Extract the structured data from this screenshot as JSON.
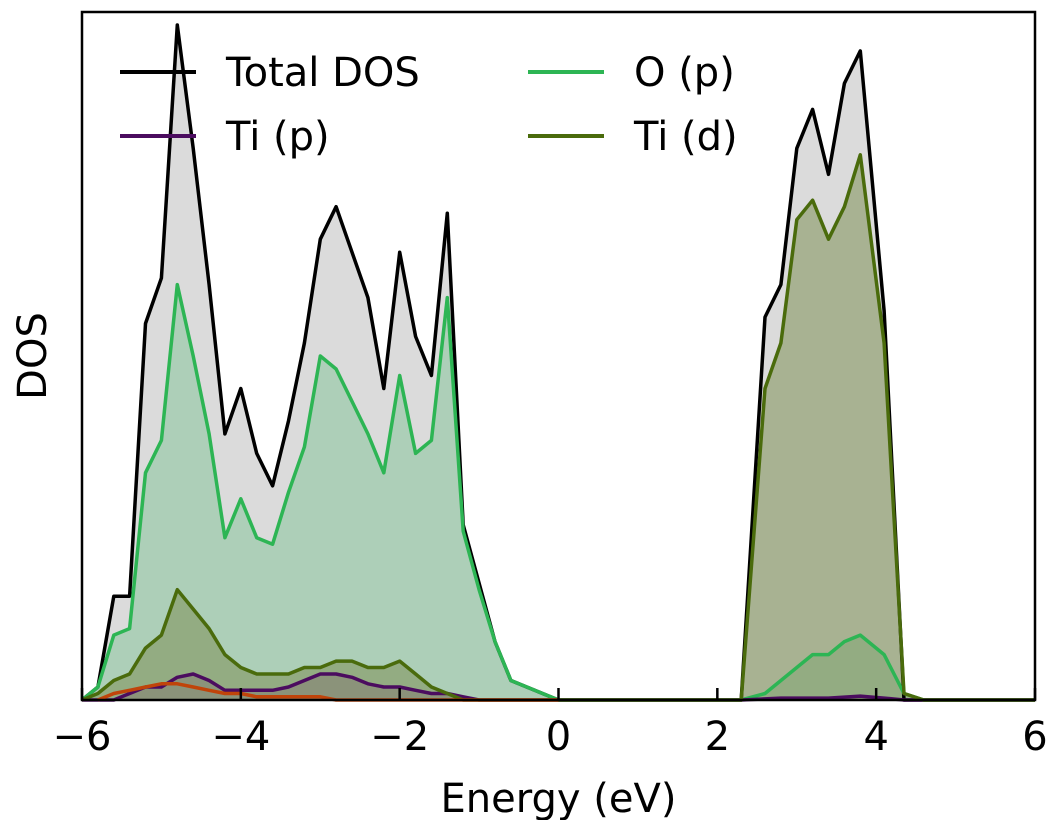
{
  "chart_data": {
    "type": "area",
    "title": "",
    "xlabel": "Energy (eV)",
    "ylabel": "DOS",
    "xlim": [
      -6,
      6
    ],
    "ylim": [
      0,
      1.06
    ],
    "xticks": [
      -6,
      -4,
      -2,
      0,
      2,
      4,
      6
    ],
    "xtick_labels": [
      "−6",
      "−4",
      "−2",
      "0",
      "2",
      "4",
      "6"
    ],
    "yticks_visible": false,
    "grid": false,
    "legend": {
      "placement": "top-left",
      "columns": 2
    },
    "series": [
      {
        "name": "Total DOS",
        "color": "#000000",
        "fill": "#bdbdbd",
        "points": [
          [
            -6.0,
            0
          ],
          [
            -5.8,
            0.02
          ],
          [
            -5.6,
            0.16
          ],
          [
            -5.4,
            0.16
          ],
          [
            -5.2,
            0.58
          ],
          [
            -5.0,
            0.65
          ],
          [
            -4.8,
            1.04
          ],
          [
            -4.6,
            0.85
          ],
          [
            -4.4,
            0.64
          ],
          [
            -4.2,
            0.41
          ],
          [
            -4.0,
            0.48
          ],
          [
            -3.8,
            0.38
          ],
          [
            -3.6,
            0.33
          ],
          [
            -3.4,
            0.43
          ],
          [
            -3.2,
            0.55
          ],
          [
            -3.0,
            0.71
          ],
          [
            -2.8,
            0.76
          ],
          [
            -2.6,
            0.69
          ],
          [
            -2.4,
            0.62
          ],
          [
            -2.2,
            0.48
          ],
          [
            -2.0,
            0.69
          ],
          [
            -1.8,
            0.56
          ],
          [
            -1.6,
            0.5
          ],
          [
            -1.4,
            0.75
          ],
          [
            -1.2,
            0.27
          ],
          [
            -1.0,
            0.18
          ],
          [
            -0.8,
            0.09
          ],
          [
            -0.6,
            0.03
          ],
          [
            0.0,
            0
          ],
          [
            2.3,
            0
          ],
          [
            2.6,
            0.59
          ],
          [
            2.8,
            0.64
          ],
          [
            3.0,
            0.85
          ],
          [
            3.2,
            0.91
          ],
          [
            3.4,
            0.81
          ],
          [
            3.6,
            0.95
          ],
          [
            3.8,
            1.0
          ],
          [
            4.1,
            0.6
          ],
          [
            4.35,
            0
          ],
          [
            4.6,
            0
          ],
          [
            6.0,
            0
          ]
        ]
      },
      {
        "name": "O (p)",
        "color": "#2db554",
        "fill": "#86c49a",
        "points": [
          [
            -6.0,
            0
          ],
          [
            -5.8,
            0.02
          ],
          [
            -5.6,
            0.1
          ],
          [
            -5.4,
            0.11
          ],
          [
            -5.2,
            0.35
          ],
          [
            -5.0,
            0.4
          ],
          [
            -4.8,
            0.64
          ],
          [
            -4.6,
            0.53
          ],
          [
            -4.4,
            0.41
          ],
          [
            -4.2,
            0.25
          ],
          [
            -4.0,
            0.31
          ],
          [
            -3.8,
            0.25
          ],
          [
            -3.6,
            0.24
          ],
          [
            -3.4,
            0.32
          ],
          [
            -3.2,
            0.39
          ],
          [
            -3.0,
            0.53
          ],
          [
            -2.8,
            0.51
          ],
          [
            -2.6,
            0.46
          ],
          [
            -2.4,
            0.41
          ],
          [
            -2.2,
            0.35
          ],
          [
            -2.0,
            0.5
          ],
          [
            -1.8,
            0.38
          ],
          [
            -1.6,
            0.4
          ],
          [
            -1.4,
            0.62
          ],
          [
            -1.2,
            0.26
          ],
          [
            -1.0,
            0.17
          ],
          [
            -0.8,
            0.09
          ],
          [
            -0.6,
            0.03
          ],
          [
            0.0,
            0
          ],
          [
            2.3,
            0
          ],
          [
            2.6,
            0.01
          ],
          [
            2.8,
            0.03
          ],
          [
            3.0,
            0.05
          ],
          [
            3.2,
            0.07
          ],
          [
            3.4,
            0.07
          ],
          [
            3.6,
            0.09
          ],
          [
            3.8,
            0.1
          ],
          [
            4.1,
            0.07
          ],
          [
            4.35,
            0.01
          ],
          [
            4.6,
            0
          ],
          [
            6.0,
            0
          ]
        ]
      },
      {
        "name": "Ti (p)",
        "color": "#4b0c5f",
        "fill": "#8d6a99",
        "points": [
          [
            -6.0,
            0
          ],
          [
            -5.8,
            0.0
          ],
          [
            -5.6,
            0.0
          ],
          [
            -5.4,
            0.01
          ],
          [
            -5.2,
            0.02
          ],
          [
            -5.0,
            0.02
          ],
          [
            -4.8,
            0.035
          ],
          [
            -4.6,
            0.04
          ],
          [
            -4.4,
            0.03
          ],
          [
            -4.2,
            0.015
          ],
          [
            -4.0,
            0.015
          ],
          [
            -3.8,
            0.015
          ],
          [
            -3.6,
            0.015
          ],
          [
            -3.4,
            0.02
          ],
          [
            -3.2,
            0.03
          ],
          [
            -3.0,
            0.04
          ],
          [
            -2.8,
            0.04
          ],
          [
            -2.6,
            0.035
          ],
          [
            -2.4,
            0.025
          ],
          [
            -2.2,
            0.02
          ],
          [
            -2.0,
            0.02
          ],
          [
            -1.8,
            0.015
          ],
          [
            -1.6,
            0.01
          ],
          [
            -1.4,
            0.01
          ],
          [
            -1.2,
            0.005
          ],
          [
            -1.0,
            0.0
          ],
          [
            0.0,
            0
          ],
          [
            2.3,
            0
          ],
          [
            2.8,
            0.003
          ],
          [
            3.4,
            0.003
          ],
          [
            3.8,
            0.006
          ],
          [
            4.1,
            0.003
          ],
          [
            4.35,
            0
          ],
          [
            6.0,
            0
          ]
        ]
      },
      {
        "name": "Ti (d)",
        "color": "#4a6b0c",
        "fill": "#7d8f55",
        "points": [
          [
            -6.0,
            0
          ],
          [
            -5.8,
            0.01
          ],
          [
            -5.6,
            0.03
          ],
          [
            -5.4,
            0.04
          ],
          [
            -5.2,
            0.08
          ],
          [
            -5.0,
            0.1
          ],
          [
            -4.8,
            0.17
          ],
          [
            -4.6,
            0.14
          ],
          [
            -4.4,
            0.11
          ],
          [
            -4.2,
            0.07
          ],
          [
            -4.0,
            0.05
          ],
          [
            -3.8,
            0.04
          ],
          [
            -3.6,
            0.04
          ],
          [
            -3.4,
            0.04
          ],
          [
            -3.2,
            0.05
          ],
          [
            -3.0,
            0.05
          ],
          [
            -2.8,
            0.06
          ],
          [
            -2.6,
            0.06
          ],
          [
            -2.4,
            0.05
          ],
          [
            -2.2,
            0.05
          ],
          [
            -2.0,
            0.06
          ],
          [
            -1.8,
            0.04
          ],
          [
            -1.6,
            0.02
          ],
          [
            -1.4,
            0.01
          ],
          [
            -1.2,
            0.0
          ],
          [
            0.0,
            0
          ],
          [
            2.3,
            0
          ],
          [
            2.6,
            0.48
          ],
          [
            2.8,
            0.55
          ],
          [
            3.0,
            0.74
          ],
          [
            3.2,
            0.77
          ],
          [
            3.4,
            0.71
          ],
          [
            3.6,
            0.76
          ],
          [
            3.8,
            0.84
          ],
          [
            4.1,
            0.55
          ],
          [
            4.35,
            0.01
          ],
          [
            4.6,
            0
          ],
          [
            6.0,
            0
          ]
        ]
      },
      {
        "name": "",
        "color": "#c0440a",
        "fill": "none",
        "points": [
          [
            -5.8,
            0
          ],
          [
            -5.6,
            0.01
          ],
          [
            -5.4,
            0.015
          ],
          [
            -5.2,
            0.02
          ],
          [
            -5.0,
            0.025
          ],
          [
            -4.8,
            0.025
          ],
          [
            -4.6,
            0.02
          ],
          [
            -4.4,
            0.015
          ],
          [
            -4.2,
            0.01
          ],
          [
            -4.0,
            0.01
          ],
          [
            -3.8,
            0.005
          ],
          [
            -3.6,
            0.005
          ],
          [
            -3.4,
            0.005
          ],
          [
            -3.2,
            0.005
          ],
          [
            -3.0,
            0.005
          ],
          [
            -2.8,
            0.0
          ],
          [
            -2.0,
            0.0
          ],
          [
            -1.0,
            0.0
          ],
          [
            0.0,
            0
          ]
        ]
      }
    ]
  }
}
